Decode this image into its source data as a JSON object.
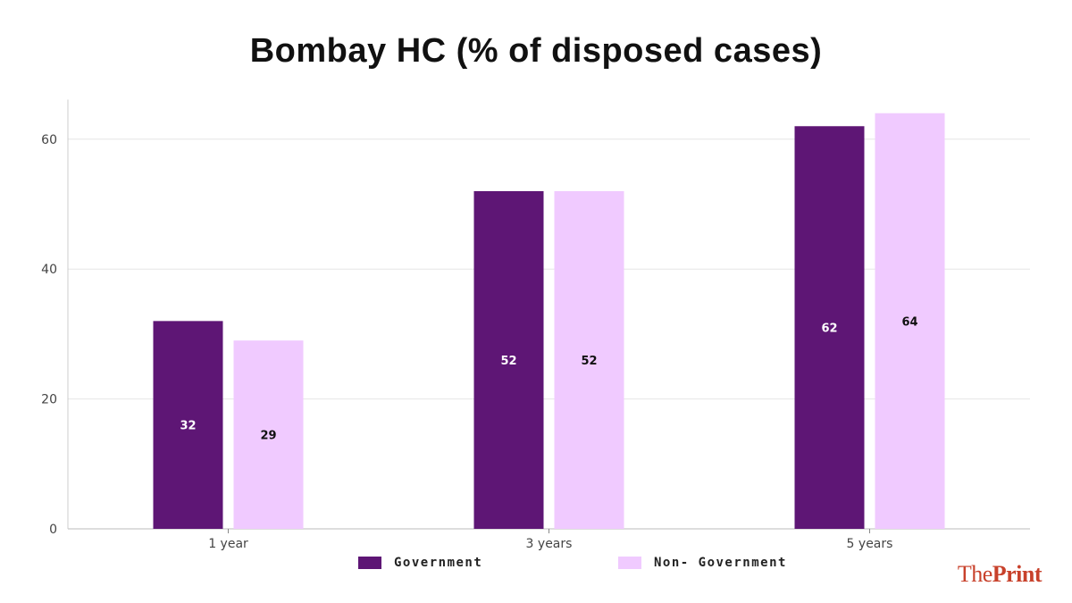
{
  "chart_data": {
    "type": "bar",
    "title": "Bombay HC (% of disposed cases)",
    "categories": [
      "1 year",
      "3 years",
      "5 years"
    ],
    "series": [
      {
        "name": "Government",
        "values": [
          32,
          52,
          62
        ],
        "color": "#5e1675",
        "label_color": "#ffffff"
      },
      {
        "name": "Non- Government",
        "values": [
          29,
          52,
          64
        ],
        "color": "#f0caff",
        "label_color": "#111111"
      }
    ],
    "ylim": [
      0,
      65
    ],
    "yticks": [
      0,
      20,
      40,
      60
    ],
    "xlabel": "",
    "ylabel": "",
    "grid": true,
    "legend": "bottom"
  },
  "branding": {
    "logo_the": "The",
    "logo_print": "Print",
    "logo_color": "#c8412b"
  }
}
